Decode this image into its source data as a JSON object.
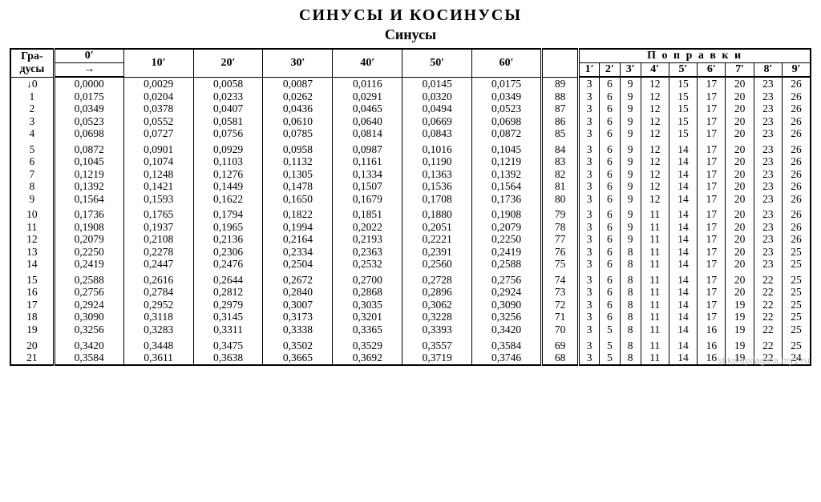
{
  "title_main": "СИНУСЫ И КОСИНУСЫ",
  "title_sub": "Синусы",
  "header": {
    "deg_label": "Гра-\nдусы",
    "arrow": "→",
    "minute_labels": [
      "0′",
      "10′",
      "20′",
      "30′",
      "40′",
      "50′",
      "60′"
    ],
    "corrections_label": "П о п р а в к и",
    "corr_minutes": [
      "1′",
      "2′",
      "3′",
      "4′",
      "5′",
      "6′",
      "7′",
      "8′",
      "9′"
    ]
  },
  "rows": [
    {
      "deg": "↓0",
      "v": [
        "0,0000",
        "0,0029",
        "0,0058",
        "0,0087",
        "0,0116",
        "0,0145",
        "0,0175"
      ],
      "co": "89",
      "c": [
        "3",
        "6",
        "9",
        "12",
        "15",
        "17",
        "20",
        "23",
        "26"
      ]
    },
    {
      "deg": "1",
      "v": [
        "0,0175",
        "0,0204",
        "0,0233",
        "0,0262",
        "0,0291",
        "0,0320",
        "0,0349"
      ],
      "co": "88",
      "c": [
        "3",
        "6",
        "9",
        "12",
        "15",
        "17",
        "20",
        "23",
        "26"
      ]
    },
    {
      "deg": "2",
      "v": [
        "0,0349",
        "0,0378",
        "0,0407",
        "0,0436",
        "0,0465",
        "0,0494",
        "0,0523"
      ],
      "co": "87",
      "c": [
        "3",
        "6",
        "9",
        "12",
        "15",
        "17",
        "20",
        "23",
        "26"
      ]
    },
    {
      "deg": "3",
      "v": [
        "0,0523",
        "0,0552",
        "0,0581",
        "0,0610",
        "0,0640",
        "0,0669",
        "0,0698"
      ],
      "co": "86",
      "c": [
        "3",
        "6",
        "9",
        "12",
        "15",
        "17",
        "20",
        "23",
        "26"
      ]
    },
    {
      "deg": "4",
      "v": [
        "0,0698",
        "0,0727",
        "0,0756",
        "0,0785",
        "0,0814",
        "0,0843",
        "0,0872"
      ],
      "co": "85",
      "c": [
        "3",
        "6",
        "9",
        "12",
        "15",
        "17",
        "20",
        "23",
        "26"
      ]
    },
    {
      "deg": "5",
      "v": [
        "0,0872",
        "0,0901",
        "0,0929",
        "0,0958",
        "0,0987",
        "0,1016",
        "0,1045"
      ],
      "co": "84",
      "c": [
        "3",
        "6",
        "9",
        "12",
        "14",
        "17",
        "20",
        "23",
        "26"
      ]
    },
    {
      "deg": "6",
      "v": [
        "0,1045",
        "0,1074",
        "0,1103",
        "0,1132",
        "0,1161",
        "0,1190",
        "0,1219"
      ],
      "co": "83",
      "c": [
        "3",
        "6",
        "9",
        "12",
        "14",
        "17",
        "20",
        "23",
        "26"
      ]
    },
    {
      "deg": "7",
      "v": [
        "0,1219",
        "0,1248",
        "0,1276",
        "0,1305",
        "0,1334",
        "0,1363",
        "0,1392"
      ],
      "co": "82",
      "c": [
        "3",
        "6",
        "9",
        "12",
        "14",
        "17",
        "20",
        "23",
        "26"
      ]
    },
    {
      "deg": "8",
      "v": [
        "0,1392",
        "0,1421",
        "0,1449",
        "0,1478",
        "0,1507",
        "0,1536",
        "0,1564"
      ],
      "co": "81",
      "c": [
        "3",
        "6",
        "9",
        "12",
        "14",
        "17",
        "20",
        "23",
        "26"
      ]
    },
    {
      "deg": "9",
      "v": [
        "0,1564",
        "0,1593",
        "0,1622",
        "0,1650",
        "0,1679",
        "0,1708",
        "0,1736"
      ],
      "co": "80",
      "c": [
        "3",
        "6",
        "9",
        "12",
        "14",
        "17",
        "20",
        "23",
        "26"
      ]
    },
    {
      "deg": "10",
      "v": [
        "0,1736",
        "0,1765",
        "0,1794",
        "0,1822",
        "0,1851",
        "0,1880",
        "0,1908"
      ],
      "co": "79",
      "c": [
        "3",
        "6",
        "9",
        "11",
        "14",
        "17",
        "20",
        "23",
        "26"
      ]
    },
    {
      "deg": "11",
      "v": [
        "0,1908",
        "0,1937",
        "0,1965",
        "0,1994",
        "0,2022",
        "0,2051",
        "0,2079"
      ],
      "co": "78",
      "c": [
        "3",
        "6",
        "9",
        "11",
        "14",
        "17",
        "20",
        "23",
        "26"
      ]
    },
    {
      "deg": "12",
      "v": [
        "0,2079",
        "0,2108",
        "0,2136",
        "0,2164",
        "0,2193",
        "0,2221",
        "0,2250"
      ],
      "co": "77",
      "c": [
        "3",
        "6",
        "9",
        "11",
        "14",
        "17",
        "20",
        "23",
        "26"
      ]
    },
    {
      "deg": "13",
      "v": [
        "0,2250",
        "0,2278",
        "0,2306",
        "0,2334",
        "0,2363",
        "0,2391",
        "0,2419"
      ],
      "co": "76",
      "c": [
        "3",
        "6",
        "8",
        "11",
        "14",
        "17",
        "20",
        "23",
        "25"
      ]
    },
    {
      "deg": "14",
      "v": [
        "0,2419",
        "0,2447",
        "0,2476",
        "0,2504",
        "0,2532",
        "0,2560",
        "0,2588"
      ],
      "co": "75",
      "c": [
        "3",
        "6",
        "8",
        "11",
        "14",
        "17",
        "20",
        "23",
        "25"
      ]
    },
    {
      "deg": "15",
      "v": [
        "0,2588",
        "0,2616",
        "0,2644",
        "0,2672",
        "0,2700",
        "0,2728",
        "0,2756"
      ],
      "co": "74",
      "c": [
        "3",
        "6",
        "8",
        "11",
        "14",
        "17",
        "20",
        "22",
        "25"
      ]
    },
    {
      "deg": "16",
      "v": [
        "0,2756",
        "0,2784",
        "0,2812",
        "0,2840",
        "0,2868",
        "0,2896",
        "0,2924"
      ],
      "co": "73",
      "c": [
        "3",
        "6",
        "8",
        "11",
        "14",
        "17",
        "20",
        "22",
        "25"
      ]
    },
    {
      "deg": "17",
      "v": [
        "0,2924",
        "0,2952",
        "0,2979",
        "0,3007",
        "0,3035",
        "0,3062",
        "0,3090"
      ],
      "co": "72",
      "c": [
        "3",
        "6",
        "8",
        "11",
        "14",
        "17",
        "19",
        "22",
        "25"
      ]
    },
    {
      "deg": "18",
      "v": [
        "0,3090",
        "0,3118",
        "0,3145",
        "0,3173",
        "0,3201",
        "0,3228",
        "0,3256"
      ],
      "co": "71",
      "c": [
        "3",
        "6",
        "8",
        "11",
        "14",
        "17",
        "19",
        "22",
        "25"
      ]
    },
    {
      "deg": "19",
      "v": [
        "0,3256",
        "0,3283",
        "0,3311",
        "0,3338",
        "0,3365",
        "0,3393",
        "0,3420"
      ],
      "co": "70",
      "c": [
        "3",
        "5",
        "8",
        "11",
        "14",
        "16",
        "19",
        "22",
        "25"
      ]
    },
    {
      "deg": "20",
      "v": [
        "0,3420",
        "0,3448",
        "0,3475",
        "0,3502",
        "0,3529",
        "0,3557",
        "0,3584"
      ],
      "co": "69",
      "c": [
        "3",
        "5",
        "8",
        "11",
        "14",
        "16",
        "19",
        "22",
        "25"
      ]
    },
    {
      "deg": "21",
      "v": [
        "0,3584",
        "0,3611",
        "0,3638",
        "0,3665",
        "0,3692",
        "0,3719",
        "0,3746"
      ],
      "co": "68",
      "c": [
        "3",
        "5",
        "8",
        "11",
        "14",
        "16",
        "19",
        "22",
        "24"
      ]
    }
  ],
  "group_size": 5,
  "watermark": "shkolapifagora.my1.ru"
}
